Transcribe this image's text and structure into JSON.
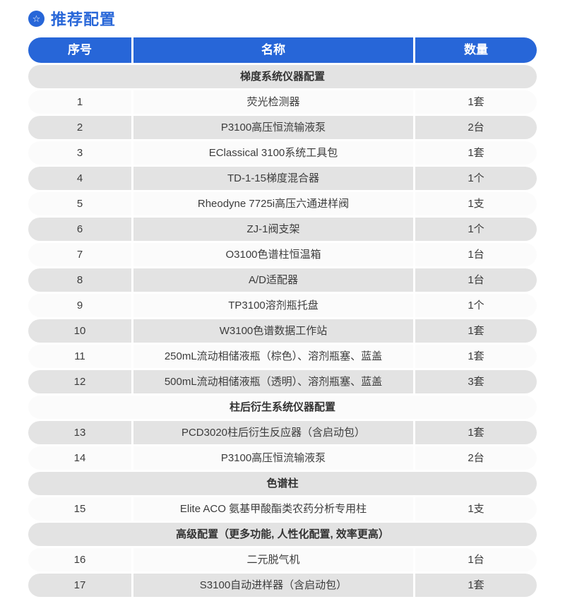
{
  "page": {
    "title": "推荐配置",
    "title_icon": "star-badge-icon"
  },
  "colors": {
    "primary_blue": "#2766D8",
    "row_gray": "#E3E3E3",
    "row_white": "#FBFBFB",
    "header_text": "#FFFFFF",
    "cell_text": "#3C3C3C",
    "partial_next_header_bar": "#AFB8C6"
  },
  "icons": {
    "star_badge": "☆"
  },
  "table": {
    "headers": [
      "序号",
      "名称",
      "数量"
    ],
    "rows": [
      {
        "type": "section",
        "label": "梯度系统仪器配置"
      },
      {
        "type": "item",
        "no": "1",
        "name": "荧光检测器",
        "qty": "1套"
      },
      {
        "type": "item",
        "no": "2",
        "name": "P3100高压恒流输液泵",
        "qty": "2台"
      },
      {
        "type": "item",
        "no": "3",
        "name": "EClassical 3100系统工具包",
        "qty": "1套"
      },
      {
        "type": "item",
        "no": "4",
        "name": "TD-1-15梯度混合器",
        "qty": "1个"
      },
      {
        "type": "item",
        "no": "5",
        "name": "Rheodyne 7725i高压六通进样阀",
        "qty": "1支"
      },
      {
        "type": "item",
        "no": "6",
        "name": "ZJ-1阀支架",
        "qty": "1个"
      },
      {
        "type": "item",
        "no": "7",
        "name": "O3100色谱柱恒温箱",
        "qty": "1台"
      },
      {
        "type": "item",
        "no": "8",
        "name": "A/D适配器",
        "qty": "1台"
      },
      {
        "type": "item",
        "no": "9",
        "name": "TP3100溶剂瓶托盘",
        "qty": "1个"
      },
      {
        "type": "item",
        "no": "10",
        "name": "W3100色谱数据工作站",
        "qty": "1套"
      },
      {
        "type": "item",
        "no": "11",
        "name": "250mL流动相储液瓶（棕色）、溶剂瓶塞、蓝盖",
        "qty": "1套"
      },
      {
        "type": "item",
        "no": "12",
        "name": "500mL流动相储液瓶（透明）、溶剂瓶塞、蓝盖",
        "qty": "3套"
      },
      {
        "type": "section",
        "label": "柱后衍生系统仪器配置"
      },
      {
        "type": "item",
        "no": "13",
        "name": "PCD3020柱后衍生反应器（含启动包）",
        "qty": "1套"
      },
      {
        "type": "item",
        "no": "14",
        "name": "P3100高压恒流输液泵",
        "qty": "2台"
      },
      {
        "type": "section",
        "label": "色谱柱"
      },
      {
        "type": "item",
        "no": "15",
        "name": "Elite ACO 氨基甲酸酯类农药分析专用柱",
        "qty": "1支"
      },
      {
        "type": "section",
        "label": "高级配置（更多功能, 人性化配置, 效率更高）"
      },
      {
        "type": "item",
        "no": "16",
        "name": "二元脱气机",
        "qty": "1台"
      },
      {
        "type": "item",
        "no": "17",
        "name": "S3100自动进样器（含启动包）",
        "qty": "1套"
      }
    ]
  }
}
